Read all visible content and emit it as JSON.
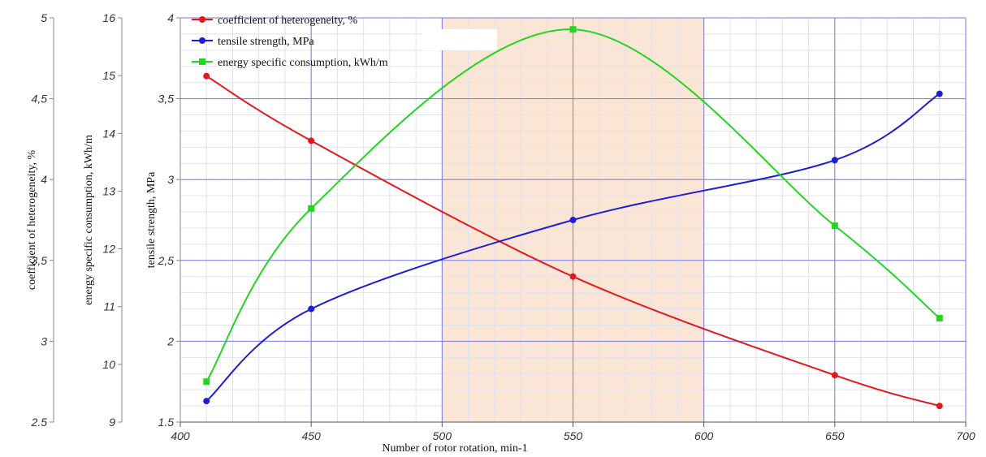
{
  "chart_data": {
    "type": "line",
    "xlabel": "Number of rotor rotation, min-1",
    "x_ticks": [
      "400",
      "450",
      "500",
      "550",
      "600",
      "650",
      "700"
    ],
    "xlim": [
      400,
      700
    ],
    "highlight_range": [
      500,
      600
    ],
    "grid": true,
    "legend_position": "top-left",
    "axes": [
      {
        "id": "het",
        "label": "coefficient of heterogeneity, %",
        "ylim": [
          2.5,
          5
        ],
        "ticks": [
          "2.5",
          "3",
          "3,5",
          "4",
          "4,5",
          "5"
        ]
      },
      {
        "id": "energy",
        "label": "energy specific consumption, kWh/m",
        "ylim": [
          9,
          16
        ],
        "ticks": [
          "9",
          "10",
          "11",
          "12",
          "13",
          "14",
          "15",
          "16"
        ]
      },
      {
        "id": "tensile",
        "label": "tensile strength, MPa",
        "ylim": [
          1.5,
          4
        ],
        "ticks": [
          "1.5",
          "2",
          "2,5",
          "3",
          "3,5",
          "4"
        ]
      }
    ],
    "series": [
      {
        "name": "coefficient of heterogeneity, %",
        "axis": "het",
        "color": "#e8161b",
        "marker": "circle",
        "x": [
          410,
          450,
          550,
          650,
          690
        ],
        "y": [
          4.64,
          4.24,
          3.4,
          2.79,
          2.6
        ]
      },
      {
        "name": "tensile strength, MPa",
        "axis": "tensile",
        "color": "#1d1dd8",
        "marker": "circle",
        "x": [
          410,
          450,
          550,
          650,
          690
        ],
        "y": [
          1.63,
          2.2,
          2.75,
          3.12,
          3.53
        ]
      },
      {
        "name": "energy specific consumption, kWh/m",
        "axis": "energy",
        "color": "#22d622",
        "marker": "square",
        "x": [
          410,
          450,
          550,
          650,
          690
        ],
        "y": [
          9.7,
          12.7,
          15.8,
          12.4,
          10.8
        ]
      }
    ]
  }
}
